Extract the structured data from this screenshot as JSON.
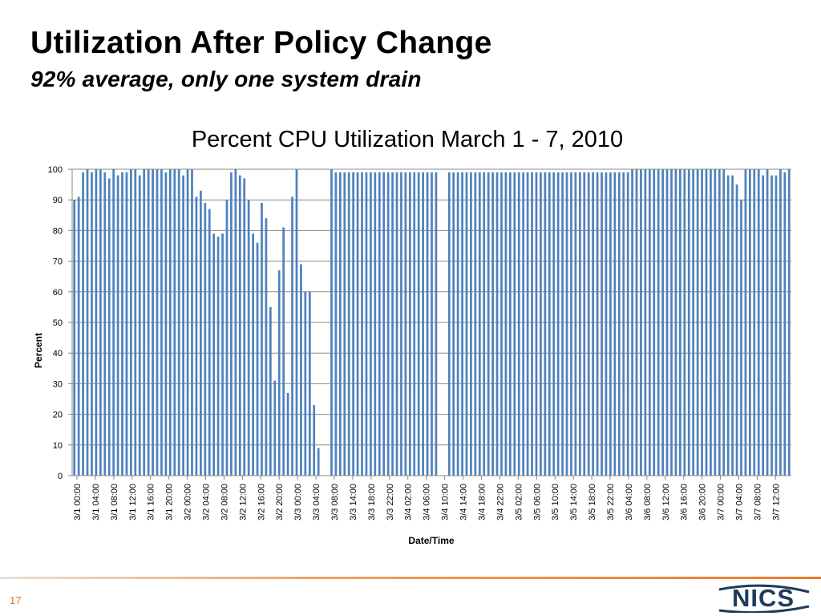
{
  "slide": {
    "title": "Utilization After Policy Change",
    "subtitle": "92% average, only one system drain",
    "page_number": "17",
    "logo_text": "NICS",
    "colors": {
      "accent": "#e07b28",
      "bar": "#4f81bd",
      "logo": "#1f3a5a"
    }
  },
  "chart_data": {
    "type": "bar",
    "title": "Percent CPU Utilization March 1 - 7, 2010",
    "xlabel": "Date/Time",
    "ylabel": "Percent",
    "ylim": [
      0,
      100
    ],
    "yticks": [
      0,
      10,
      20,
      30,
      40,
      50,
      60,
      70,
      80,
      90,
      100
    ],
    "grid": true,
    "x_tick_labels": [
      "3/1 00:00",
      "3/1 04:00",
      "3/1 08:00",
      "3/1 12:00",
      "3/1 16:00",
      "3/1 20:00",
      "3/2 00:00",
      "3/2 04:00",
      "3/2 08:00",
      "3/2 12:00",
      "3/2 16:00",
      "3/2 20:00",
      "3/3 00:00",
      "3/3 04:00",
      "3/3 08:00",
      "3/3 14:00",
      "3/3 18:00",
      "3/3 22:00",
      "3/4 02:00",
      "3/4 06:00",
      "3/4 10:00",
      "3/4 14:00",
      "3/4 18:00",
      "3/4 22:00",
      "3/5 02:00",
      "3/5 06:00",
      "3/5 10:00",
      "3/5 14:00",
      "3/5 18:00",
      "3/5 22:00",
      "3/6 04:00",
      "3/6 08:00",
      "3/6 12:00",
      "3/6 16:00",
      "3/6 20:00",
      "3/7 00:00",
      "3/7 04:00",
      "3/7 08:00",
      "3/7 12:00"
    ],
    "values": [
      90,
      91,
      99,
      100,
      99,
      100,
      100,
      99,
      97,
      100,
      98,
      99,
      99,
      100,
      100,
      98,
      100,
      100,
      100,
      100,
      100,
      99,
      100,
      100,
      100,
      98,
      100,
      100,
      91,
      93,
      89,
      87,
      79,
      78,
      79,
      90,
      99,
      100,
      98,
      97,
      90,
      79,
      76,
      89,
      84,
      55,
      31,
      67,
      81,
      27,
      91,
      100,
      69,
      60,
      60,
      23,
      9,
      null,
      null,
      100,
      99,
      99,
      99,
      99,
      99,
      99,
      99,
      99,
      99,
      99,
      99,
      99,
      99,
      99,
      99,
      99,
      99,
      99,
      99,
      99,
      99,
      99,
      99,
      99,
      null,
      null,
      99,
      99,
      99,
      99,
      99,
      99,
      99,
      99,
      99,
      99,
      99,
      99,
      99,
      99,
      99,
      99,
      99,
      99,
      99,
      99,
      99,
      99,
      99,
      99,
      99,
      99,
      99,
      99,
      99,
      99,
      99,
      99,
      99,
      99,
      99,
      99,
      99,
      99,
      99,
      99,
      99,
      99,
      100,
      100,
      100,
      100,
      100,
      100,
      100,
      100,
      100,
      100,
      100,
      100,
      100,
      100,
      100,
      100,
      100,
      100,
      100,
      100,
      100,
      100,
      98,
      98,
      95,
      90,
      100,
      100,
      100,
      100,
      98,
      100,
      98,
      98,
      100,
      99,
      100
    ]
  }
}
